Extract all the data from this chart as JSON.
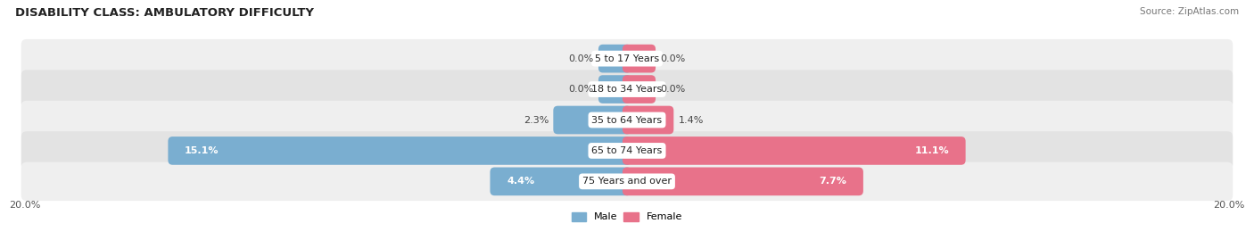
{
  "title": "DISABILITY CLASS: AMBULATORY DIFFICULTY",
  "source": "Source: ZipAtlas.com",
  "categories": [
    "5 to 17 Years",
    "18 to 34 Years",
    "35 to 64 Years",
    "65 to 74 Years",
    "75 Years and over"
  ],
  "male_values": [
    0.0,
    0.0,
    2.3,
    15.1,
    4.4
  ],
  "female_values": [
    0.0,
    0.0,
    1.4,
    11.1,
    7.7
  ],
  "max_val": 20.0,
  "male_color": "#7aaed0",
  "female_color": "#e8728a",
  "male_label": "Male",
  "female_label": "Female",
  "row_bg_color_light": "#efefef",
  "row_bg_color_dark": "#e3e3e3",
  "title_fontsize": 9.5,
  "bar_value_fontsize": 8,
  "cat_label_fontsize": 8,
  "axis_tick_fontsize": 8,
  "source_fontsize": 7.5,
  "legend_fontsize": 8,
  "white_text_min": 2.5,
  "stub_size": 0.8
}
